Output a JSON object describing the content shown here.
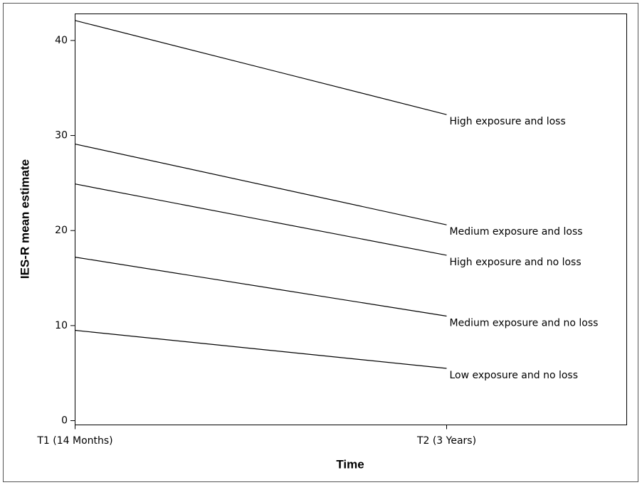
{
  "chart_data": {
    "type": "line",
    "x_label": "Time",
    "y_label": "IES-R mean estimate",
    "categories": [
      "T1 (14 Months)",
      "T2 (3 Years)"
    ],
    "series": [
      {
        "name": "High exposure and loss",
        "color": "#000000",
        "values": [
          42.1,
          32.2
        ]
      },
      {
        "name": "Medium exposure and loss",
        "color": "#000000",
        "values": [
          29.1,
          20.6
        ]
      },
      {
        "name": "High exposure and no loss",
        "color": "#000000",
        "values": [
          24.9,
          17.4
        ]
      },
      {
        "name": "Medium exposure and no loss",
        "color": "#000000",
        "values": [
          17.2,
          11.0
        ]
      },
      {
        "name": "Low exposure and no loss",
        "color": "#000000",
        "values": [
          9.5,
          5.5
        ]
      }
    ],
    "ylim": [
      -0.45,
      42.8
    ],
    "yticks": [
      0,
      10,
      20,
      30,
      40
    ]
  }
}
